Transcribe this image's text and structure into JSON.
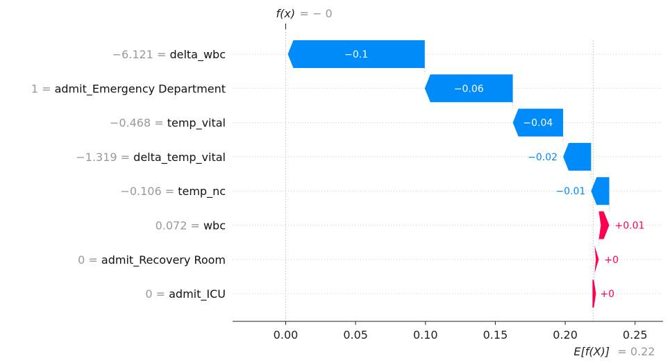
{
  "colors": {
    "negative": "#008bfb",
    "positive": "#ff0051",
    "gray": "#999999",
    "grid": "#cccccc"
  },
  "header": {
    "fx_label": "f(x)",
    "fx_value": "= − 0"
  },
  "footer": {
    "efx_label": "E[f(X)]",
    "efx_value": "= 0.22"
  },
  "chart_data": {
    "type": "bar",
    "subtype": "waterfall",
    "base_value": 0.22,
    "output_value": 0.0,
    "xlim": [
      -0.038,
      0.27
    ],
    "xticks": [
      0.0,
      0.05,
      0.1,
      0.15,
      0.2,
      0.25
    ],
    "xtick_labels": [
      "0.00",
      "0.05",
      "0.10",
      "0.15",
      "0.20",
      "0.25"
    ],
    "features": [
      {
        "value_text": "−6.121 =",
        "name": "delta_wbc",
        "contribution": -0.098,
        "label": "−0.1"
      },
      {
        "value_text": "1 =",
        "name": "admit_Emergency Department",
        "contribution": -0.063,
        "label": "−0.06"
      },
      {
        "value_text": "−0.468 =",
        "name": "temp_vital",
        "contribution": -0.036,
        "label": "−0.04"
      },
      {
        "value_text": "−1.319 =",
        "name": "delta_temp_vital",
        "contribution": -0.02,
        "label": "−0.02"
      },
      {
        "value_text": "−0.106 =",
        "name": "temp_nc",
        "contribution": -0.013,
        "label": "−0.01"
      },
      {
        "value_text": "0.072 =",
        "name": "wbc",
        "contribution": 0.0075,
        "label": "+0.01"
      },
      {
        "value_text": "0 =",
        "name": "admit_Recovery Room",
        "contribution": 0.003,
        "label": "+0"
      },
      {
        "value_text": "0 =",
        "name": "admit_ICU",
        "contribution": 0.001,
        "label": "+0"
      }
    ]
  }
}
